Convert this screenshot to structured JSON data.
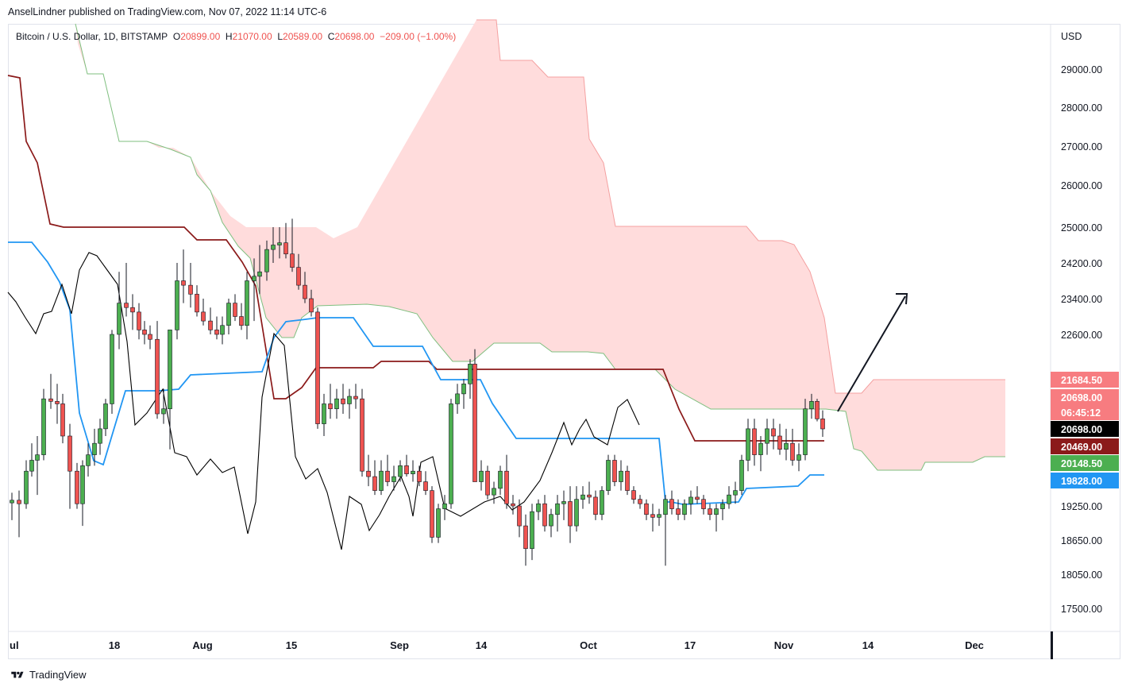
{
  "header": {
    "published": "AnselLindner published on TradingView.com, Nov 07, 2022 11:14 UTC-6"
  },
  "legend": {
    "symbol": "Bitcoin / U.S. Dollar, 1D, BITSTAMP",
    "o_label": "O",
    "o": "20899.00",
    "h_label": "H",
    "h": "21070.00",
    "l_label": "L",
    "l": "20589.00",
    "c_label": "C",
    "c": "20698.00",
    "change": "−209.00 (−1.00%)"
  },
  "footer": {
    "brand": "TradingView"
  },
  "chart_data": {
    "type": "line",
    "currency": "USD",
    "y_ticks": [
      29000,
      28000,
      27000,
      26000,
      25000,
      24200,
      23400,
      22600,
      19250,
      18650,
      18050,
      17500
    ],
    "y_tick_labels": [
      "29000.00",
      "28000.00",
      "27000.00",
      "26000.00",
      "25000.00",
      "24200.00",
      "23400.00",
      "22600.00",
      "19250.00",
      "18650.00",
      "18050.00",
      "17500.00"
    ],
    "x_labels": [
      "ul",
      "18",
      "Aug",
      "15",
      "Sep",
      "14",
      "Oct",
      "17",
      "Nov",
      "14",
      "Dec"
    ],
    "price_tags": [
      {
        "label": "21684.50",
        "bg": "#f77c80",
        "fg": "#ffffff"
      },
      {
        "label": "20698.00",
        "bg": "#f77c80",
        "fg": "#ffffff"
      },
      {
        "label": "06:45:12",
        "bg": "#f77c80",
        "fg": "#ffffff"
      },
      {
        "label": "20698.00",
        "bg": "#000000",
        "fg": "#ffffff"
      },
      {
        "label": "20469.00",
        "bg": "#8b1a1a",
        "fg": "#ffffff"
      },
      {
        "label": "20148.50",
        "bg": "#4caf50",
        "fg": "#ffffff"
      },
      {
        "label": "19828.00",
        "bg": "#2196f3",
        "fg": "#ffffff"
      }
    ],
    "colors": {
      "up": "#4caf50",
      "down": "#ef5350",
      "tenkan": "#2196f3",
      "kijun": "#8b1a1a",
      "chikou": "#000000",
      "cloud": "#ffdcdc",
      "spanA": "#7fbf7f",
      "spanB": "#f4a0a0"
    }
  }
}
